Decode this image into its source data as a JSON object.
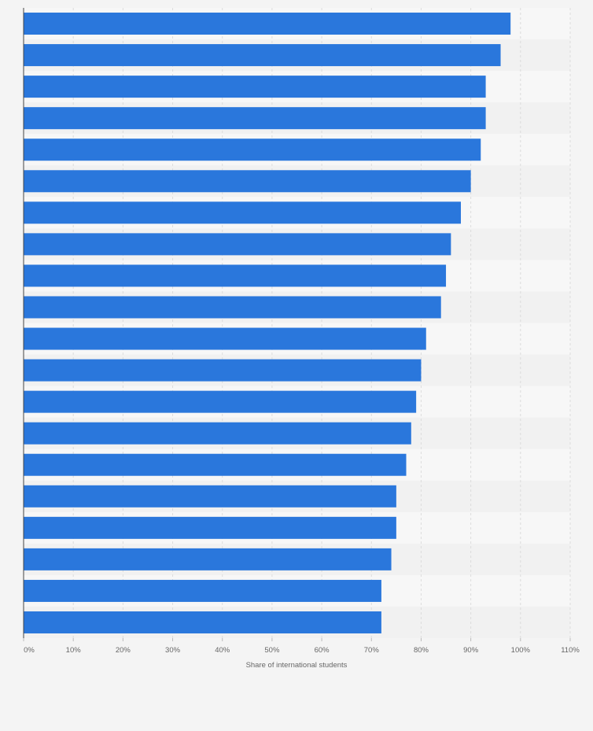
{
  "chart_data": {
    "type": "bar",
    "orientation": "horizontal",
    "categories": [
      "",
      "",
      "",
      "",
      "",
      "",
      "",
      "",
      "",
      "",
      "",
      "",
      "",
      "",
      "",
      "",
      "",
      "",
      "",
      ""
    ],
    "values": [
      98,
      96,
      93,
      93,
      92,
      90,
      88,
      86,
      85,
      84,
      81,
      80,
      79,
      78,
      77,
      75,
      75,
      74,
      72,
      72
    ],
    "xlabel": "Share of international students",
    "ylabel": "",
    "xlim": [
      0,
      110
    ],
    "xticks": [
      0,
      10,
      20,
      30,
      40,
      50,
      60,
      70,
      80,
      90,
      100,
      110
    ],
    "tick_suffix": "%",
    "grid": true,
    "colors": {
      "bar": "#2a77dc",
      "page_bg": "#f4f4f4",
      "plot_bg_light": "#f7f7f7",
      "plot_bg_dark": "#f1f1f1",
      "grid": "#dcdcdc",
      "tick_text": "#666666",
      "axis_label_text": "#666666"
    }
  }
}
